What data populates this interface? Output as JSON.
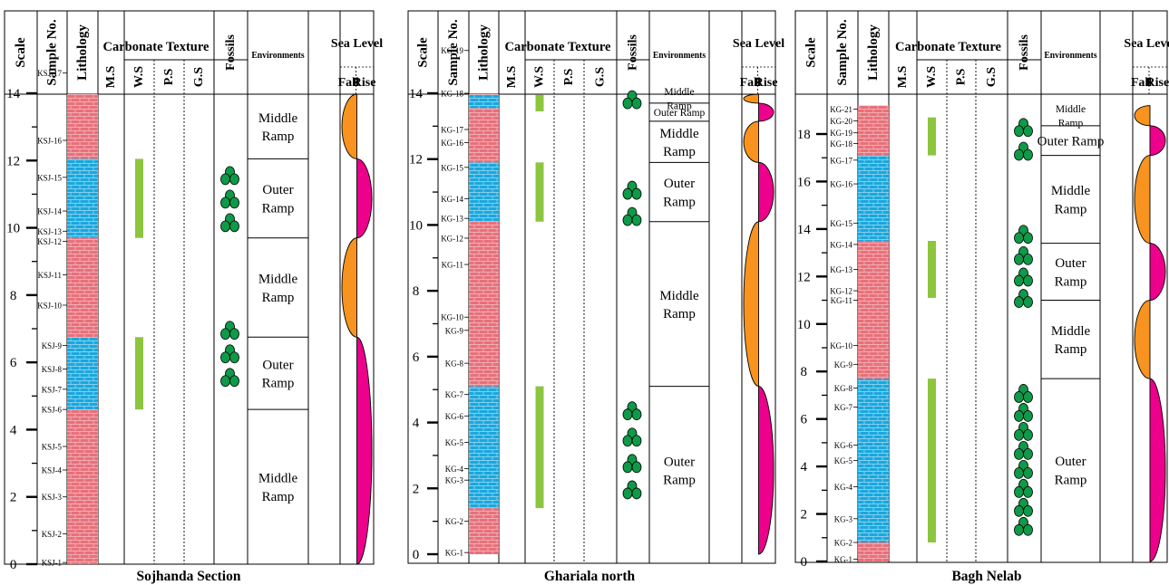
{
  "colors": {
    "limestone_pink": "#e8707a",
    "marl_blue": "#1aa7de",
    "ws_green": "#8cc63f",
    "fossil_green": "#0e9a48",
    "fall_orange": "#f7931e",
    "rise_magenta": "#ec008c"
  },
  "headers": {
    "scale": "Scale",
    "sample_no": "Sample No.",
    "lithology": "Lithology",
    "carbonate_texture": "Carbonate Texture",
    "texture_cols": [
      "M.S",
      "W.S",
      "P.S",
      "G.S"
    ],
    "fossils": "Fossils",
    "environments": "Environments",
    "sea_level": "Sea Level",
    "fall": "Fall",
    "rise": "Rise"
  },
  "sections": [
    {
      "id": "sojhanda",
      "title": "Sojhanda Section",
      "scale_ticks": [
        "0",
        "2",
        "4",
        "6",
        "8",
        "10",
        "12",
        "14"
      ],
      "samples": [
        "KSJ-1",
        "KSJ-2",
        "KSJ-3",
        "KSJ-4",
        "KSJ-5",
        "KSJ-6",
        "KSJ-7",
        "KSJ-8",
        "KSJ-9",
        "KSJ-10",
        "KSJ-11",
        "KSJ-12",
        "KSJ-13",
        "KSJ-14",
        "KSJ-15",
        "KSJ-16",
        "KSJ-17"
      ],
      "environments": [
        [
          "Middle",
          "Ramp"
        ],
        [
          "Outer",
          "Ramp"
        ],
        [
          "Middle",
          "Ramp"
        ],
        [
          "Outer",
          "Ramp"
        ],
        [
          "Middle",
          "Ramp"
        ]
      ]
    },
    {
      "id": "ghariala",
      "title": "Ghariala north",
      "scale_ticks": [
        "0",
        "2",
        "4",
        "6",
        "8",
        "10",
        "12",
        "14"
      ],
      "samples": [
        "KG-1",
        "KG-2",
        "KG-3",
        "KG-4",
        "KG-5",
        "KG-6",
        "KG-7",
        "KG-8",
        "KG-9",
        "KG-10",
        "KG-11",
        "KG-12",
        "KG-13",
        "KG-14",
        "KG-15",
        "KG-16",
        "KG-17",
        "KG-18",
        "KG-19"
      ],
      "environments": [
        [
          "Outer",
          "Ramp"
        ],
        [
          "Middle",
          "Ramp"
        ],
        [
          "Outer",
          "Ramp"
        ],
        [
          "Middle",
          "Ramp"
        ],
        [
          "Outer Ramp"
        ],
        [
          "Middle",
          "Ramp"
        ]
      ]
    },
    {
      "id": "bagh",
      "title": "Bagh Nelab",
      "scale_ticks": [
        "0",
        "2",
        "4",
        "6",
        "8",
        "10",
        "12",
        "14",
        "16",
        "18"
      ],
      "samples": [
        "KG-1",
        "KG-2",
        "KG-3",
        "KG-4",
        "KG-5",
        "KG-6",
        "KG-7",
        "KG-8",
        "KG-9",
        "KG-10",
        "KG-11",
        "KG-12",
        "KG-13",
        "KG-14",
        "KG-15",
        "KG-16",
        "KG-17",
        "KG-18",
        "KG-19",
        "KG-20",
        "KG-21"
      ],
      "environments": [
        [
          "Outer",
          "Ramp"
        ],
        [
          "Middle",
          "Ramp"
        ],
        [
          "Outer",
          "Ramp"
        ],
        [
          "Middle",
          "Ramp"
        ],
        [
          "Outer Ramp"
        ],
        [
          "Middle",
          "Ramp"
        ]
      ]
    }
  ]
}
